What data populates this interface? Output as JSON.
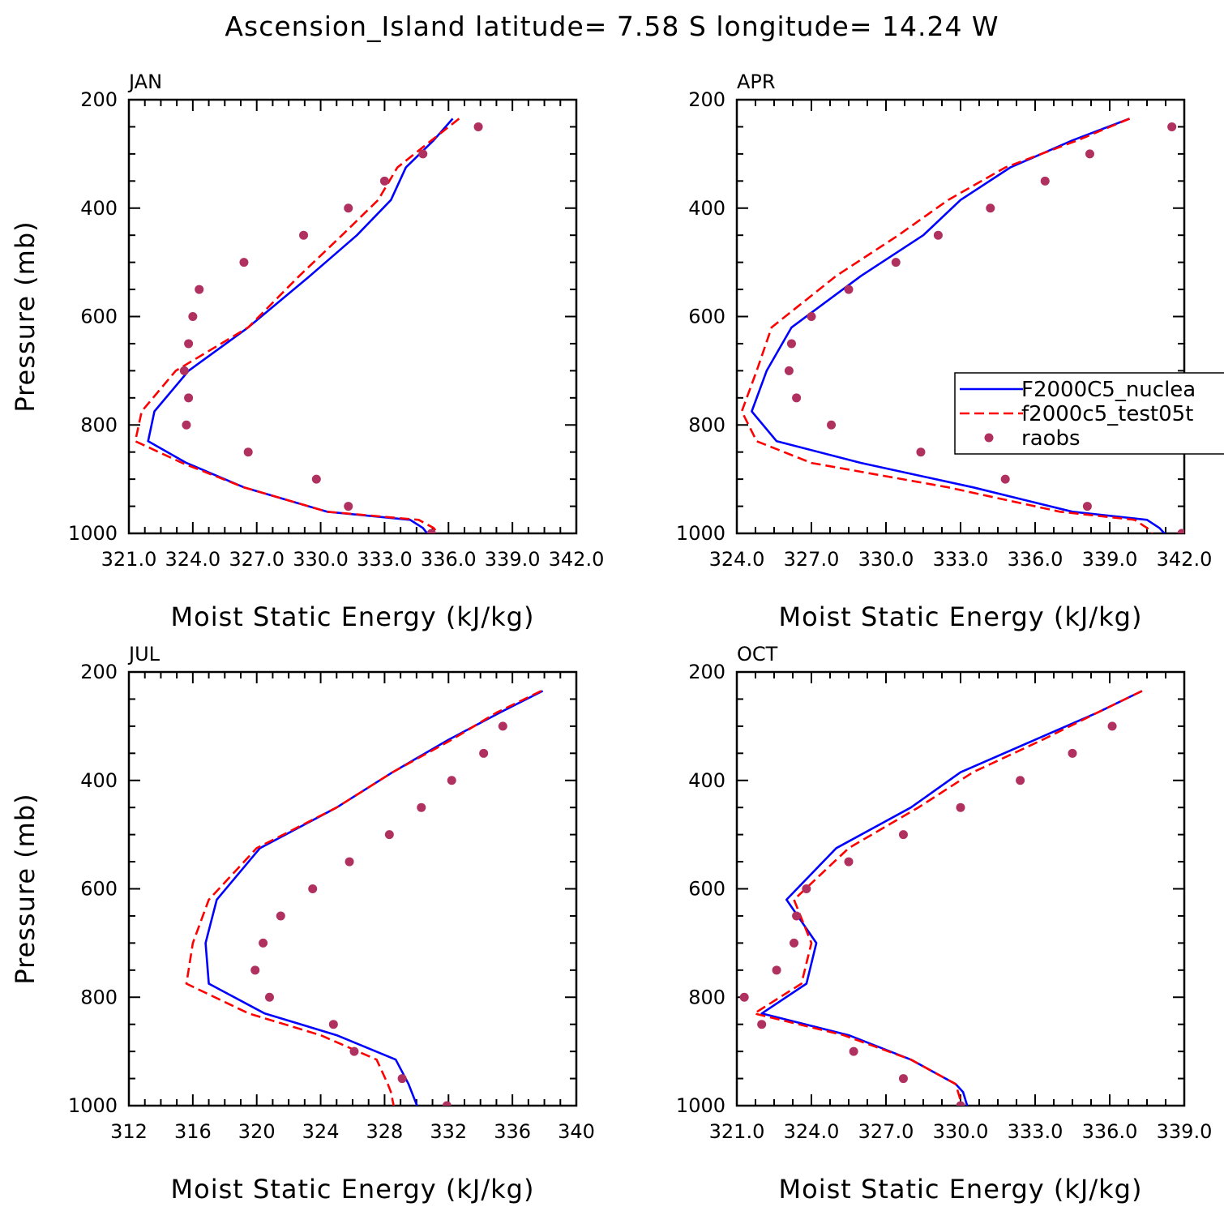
{
  "title": "Ascension_Island  latitude= 7.58 S longitude= 14.24 W",
  "colors": {
    "series1": "#0000ff",
    "series2": "#ff0000",
    "obs": "#b03060"
  },
  "chart_data": [
    {
      "type": "line",
      "panel": "JAN",
      "xlabel": "Moist Static Energy (kJ/kg)",
      "ylabel": "Pressure (mb)",
      "xlim": [
        321.0,
        342.0
      ],
      "ylim": [
        1000,
        200
      ],
      "xticks": [
        "321.0",
        "324.0",
        "327.0",
        "330.0",
        "333.0",
        "336.0",
        "339.0",
        "342.0"
      ],
      "yticks": [
        "200",
        "400",
        "600",
        "800",
        "1000"
      ],
      "legend": null,
      "series": [
        {
          "name": "F2000C5_nuclea",
          "style": "solid",
          "x": [
            336.2,
            335.3,
            334.0,
            333.3,
            331.7,
            329.5,
            326.6,
            323.8,
            322.2,
            321.9,
            323.7,
            326.4,
            330.3,
            334.2,
            334.8,
            335.1
          ],
          "y": [
            235,
            275,
            325,
            385,
            450,
            525,
            620,
            700,
            775,
            830,
            870,
            915,
            960,
            975,
            990,
            1005
          ]
        },
        {
          "name": "f2000c5_test05t",
          "style": "dashed",
          "x": [
            336.5,
            335.2,
            333.6,
            332.7,
            331.0,
            329.0,
            326.6,
            323.2,
            321.6,
            321.3,
            323.5,
            326.4,
            330.3,
            334.6,
            335.3,
            335.6
          ],
          "y": [
            235,
            275,
            325,
            385,
            450,
            525,
            620,
            700,
            775,
            830,
            870,
            915,
            960,
            975,
            990,
            1005
          ]
        },
        {
          "name": "raobs",
          "style": "markers",
          "x": [
            337.4,
            334.8,
            333.0,
            331.3,
            329.2,
            326.4,
            324.3,
            324.0,
            323.8,
            323.6,
            323.8,
            323.7,
            326.6,
            329.8,
            331.3,
            335.2
          ],
          "y": [
            250,
            300,
            350,
            400,
            450,
            500,
            550,
            600,
            650,
            700,
            750,
            800,
            850,
            900,
            950,
            1000
          ]
        }
      ]
    },
    {
      "type": "line",
      "panel": "APR",
      "xlabel": "Moist Static Energy (kJ/kg)",
      "ylabel": "",
      "xlim": [
        324.0,
        342.0
      ],
      "ylim": [
        1000,
        200
      ],
      "xticks": [
        "324.0",
        "327.0",
        "330.0",
        "333.0",
        "336.0",
        "339.0",
        "342.0"
      ],
      "yticks": [
        "200",
        "400",
        "600",
        "800",
        "1000"
      ],
      "legend": "right",
      "series": [
        {
          "name": "F2000C5_nuclea",
          "style": "solid",
          "x": [
            339.8,
            337.5,
            335.0,
            333.0,
            331.5,
            329.0,
            326.2,
            325.2,
            324.6,
            325.6,
            329.0,
            333.5,
            337.5,
            340.5,
            341.0,
            341.3
          ],
          "y": [
            235,
            275,
            325,
            385,
            450,
            525,
            620,
            700,
            775,
            830,
            870,
            915,
            960,
            975,
            990,
            1005
          ]
        },
        {
          "name": "f2000c5_test05t",
          "style": "dashed",
          "x": [
            339.8,
            337.7,
            334.8,
            332.5,
            330.5,
            328.0,
            325.4,
            324.8,
            324.2,
            324.8,
            327.0,
            332.5,
            337.0,
            340.0,
            340.5,
            340.8
          ],
          "y": [
            235,
            275,
            325,
            385,
            450,
            525,
            620,
            700,
            775,
            830,
            870,
            915,
            960,
            975,
            990,
            1005
          ]
        },
        {
          "name": "raobs",
          "style": "markers",
          "x": [
            341.5,
            338.2,
            336.4,
            334.2,
            332.1,
            330.4,
            328.5,
            327.0,
            326.2,
            326.1,
            326.4,
            327.8,
            331.4,
            334.8,
            338.1,
            341.9
          ],
          "y": [
            250,
            300,
            350,
            400,
            450,
            500,
            550,
            600,
            650,
            700,
            750,
            800,
            850,
            900,
            950,
            1000
          ]
        }
      ]
    },
    {
      "type": "line",
      "panel": "JUL",
      "xlabel": "Moist Static Energy (kJ/kg)",
      "ylabel": "Pressure (mb)",
      "xlim": [
        312,
        340
      ],
      "ylim": [
        1000,
        200
      ],
      "xticks": [
        "312",
        "316",
        "320",
        "324",
        "328",
        "332",
        "336",
        "340"
      ],
      "yticks": [
        "200",
        "400",
        "600",
        "800",
        "1000"
      ],
      "legend": null,
      "series": [
        {
          "name": "F2000C5_nuclea",
          "style": "solid",
          "x": [
            337.9,
            335.2,
            332.0,
            328.5,
            325.0,
            320.2,
            317.5,
            316.8,
            317.0,
            320.5,
            325.0,
            328.7,
            329.5,
            329.7,
            330.1
          ],
          "y": [
            235,
            275,
            325,
            385,
            450,
            525,
            620,
            700,
            775,
            830,
            870,
            915,
            960,
            975,
            1005
          ]
        },
        {
          "name": "f2000c5_test05t",
          "style": "dashed",
          "x": [
            337.8,
            335.0,
            332.2,
            328.5,
            325.0,
            320.0,
            317.0,
            316.0,
            315.6,
            319.5,
            324.0,
            327.5,
            328.2,
            328.4,
            328.6
          ],
          "y": [
            235,
            275,
            325,
            385,
            450,
            525,
            620,
            700,
            775,
            830,
            870,
            915,
            960,
            975,
            1005
          ]
        },
        {
          "name": "raobs",
          "style": "markers",
          "x": [
            335.4,
            334.2,
            332.2,
            330.3,
            328.3,
            325.8,
            323.5,
            321.5,
            320.4,
            319.9,
            320.8,
            324.8,
            326.1,
            329.1,
            331.9
          ],
          "y": [
            300,
            350,
            400,
            450,
            500,
            550,
            600,
            650,
            700,
            750,
            800,
            850,
            900,
            950,
            1000
          ]
        }
      ]
    },
    {
      "type": "line",
      "panel": "OCT",
      "xlabel": "Moist Static Energy (kJ/kg)",
      "ylabel": "",
      "xlim": [
        321.0,
        339.0
      ],
      "ylim": [
        1000,
        200
      ],
      "xticks": [
        "321.0",
        "324.0",
        "327.0",
        "330.0",
        "333.0",
        "336.0",
        "339.0"
      ],
      "yticks": [
        "200",
        "400",
        "600",
        "800",
        "1000"
      ],
      "legend": null,
      "series": [
        {
          "name": "F2000C5_nuclea",
          "style": "solid",
          "x": [
            337.3,
            335.5,
            333.0,
            330.0,
            328.0,
            325.0,
            323.0,
            324.2,
            323.8,
            322.0,
            325.5,
            328.0,
            329.8,
            330.1,
            330.3
          ],
          "y": [
            235,
            275,
            325,
            385,
            450,
            525,
            620,
            700,
            775,
            830,
            870,
            915,
            960,
            975,
            1005
          ]
        },
        {
          "name": "f2000c5_test05t",
          "style": "dashed",
          "x": [
            337.3,
            335.5,
            333.3,
            330.5,
            328.3,
            325.5,
            323.3,
            324.0,
            323.6,
            321.7,
            325.3,
            328.0,
            329.8,
            329.9,
            330.1
          ],
          "y": [
            235,
            275,
            325,
            385,
            450,
            525,
            620,
            700,
            775,
            830,
            870,
            915,
            960,
            975,
            1005
          ]
        },
        {
          "name": "raobs",
          "style": "markers",
          "x": [
            336.1,
            334.5,
            332.4,
            330.0,
            327.7,
            325.5,
            323.8,
            323.4,
            323.3,
            322.6,
            321.3,
            322.0,
            325.7,
            327.7,
            330.0
          ],
          "y": [
            300,
            350,
            400,
            450,
            500,
            550,
            600,
            650,
            700,
            750,
            800,
            850,
            900,
            950,
            1000
          ]
        }
      ]
    }
  ]
}
